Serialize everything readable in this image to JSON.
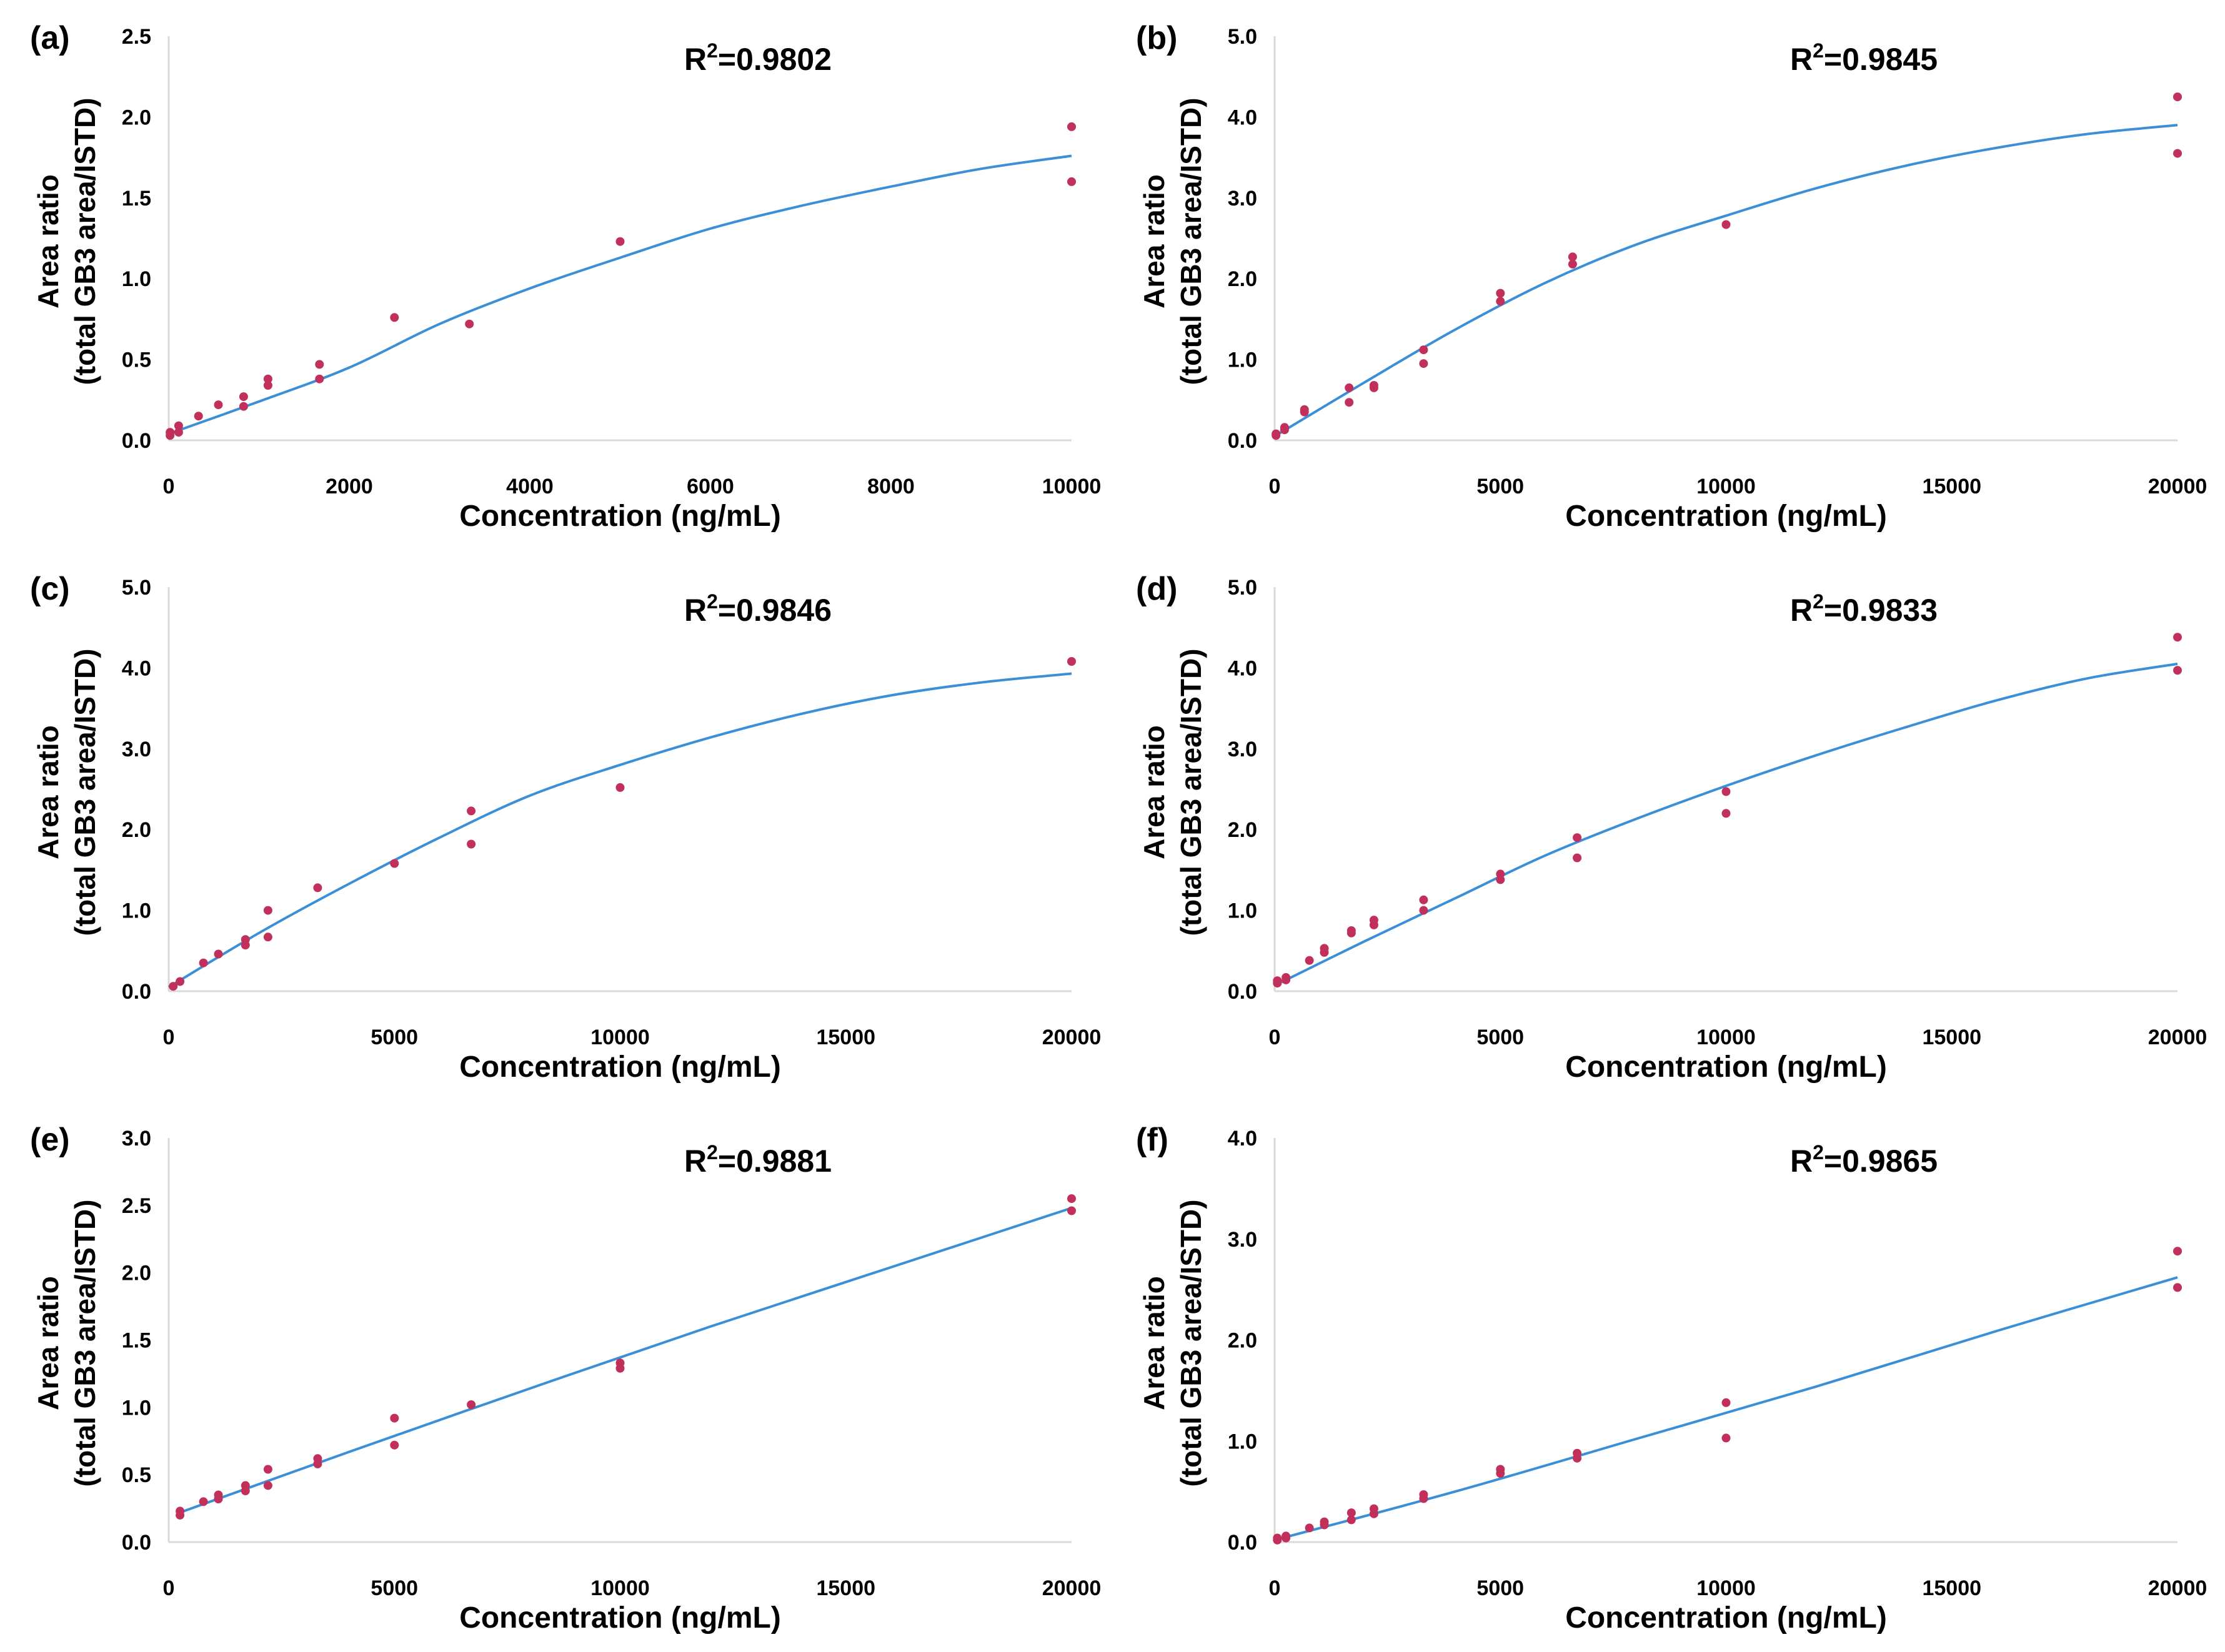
{
  "colors": {
    "fit_line": "#3b8fd6",
    "points": "#c0305a",
    "axis": "#d9d9d9"
  },
  "chart_data": [
    {
      "type": "scatter",
      "panel_label": "(a)",
      "r2_prefix": "R",
      "r2_exp": "2",
      "r2_value": "=0.9802",
      "xlabel": "Concentration (ng/mL)",
      "ylabel_line1": "Area ratio",
      "ylabel_line2": "(total GB3 area/ISTD)",
      "xlim": [
        0,
        10000
      ],
      "ylim": [
        0,
        2.5
      ],
      "xticks": [
        0,
        2000,
        4000,
        6000,
        8000,
        10000
      ],
      "xtick_labels": [
        "0",
        "2000",
        "4000",
        "6000",
        "8000",
        "10000"
      ],
      "yticks": [
        0,
        0.5,
        1.0,
        1.5,
        2.0,
        2.5
      ],
      "ytick_labels": [
        "0.0",
        "0.5",
        "1.0",
        "1.5",
        "2.0",
        "2.5"
      ],
      "points": [
        [
          15,
          0.03
        ],
        [
          15,
          0.05
        ],
        [
          110,
          0.05
        ],
        [
          110,
          0.09
        ],
        [
          330,
          0.15
        ],
        [
          550,
          0.22
        ],
        [
          830,
          0.21
        ],
        [
          830,
          0.27
        ],
        [
          1100,
          0.34
        ],
        [
          1100,
          0.38
        ],
        [
          1670,
          0.38
        ],
        [
          1670,
          0.47
        ],
        [
          2500,
          0.76
        ],
        [
          3330,
          0.72
        ],
        [
          5000,
          1.23
        ],
        [
          10000,
          1.6
        ],
        [
          10000,
          1.94
        ]
      ],
      "fit": [
        [
          0,
          0.04
        ],
        [
          1000,
          0.24
        ],
        [
          2000,
          0.45
        ],
        [
          3000,
          0.72
        ],
        [
          4000,
          0.94
        ],
        [
          5000,
          1.13
        ],
        [
          6000,
          1.31
        ],
        [
          7000,
          1.45
        ],
        [
          8000,
          1.57
        ],
        [
          9000,
          1.68
        ],
        [
          10000,
          1.76
        ]
      ]
    },
    {
      "type": "scatter",
      "panel_label": "(b)",
      "r2_prefix": "R",
      "r2_exp": "2",
      "r2_value": "=0.9845",
      "xlabel": "Concentration (ng/mL)",
      "ylabel_line1": "Area ratio",
      "ylabel_line2": "(total GB3 area/ISTD)",
      "xlim": [
        0,
        20000
      ],
      "ylim": [
        0,
        5.0
      ],
      "xticks": [
        0,
        5000,
        10000,
        15000,
        20000
      ],
      "xtick_labels": [
        "0",
        "5000",
        "10000",
        "15000",
        "20000"
      ],
      "yticks": [
        0,
        1.0,
        2.0,
        3.0,
        4.0,
        5.0
      ],
      "ytick_labels": [
        "0.0",
        "1.0",
        "2.0",
        "3.0",
        "4.0",
        "5.0"
      ],
      "points": [
        [
          30,
          0.06
        ],
        [
          30,
          0.08
        ],
        [
          220,
          0.13
        ],
        [
          220,
          0.16
        ],
        [
          660,
          0.35
        ],
        [
          660,
          0.38
        ],
        [
          1650,
          0.47
        ],
        [
          1650,
          0.65
        ],
        [
          2200,
          0.65
        ],
        [
          2200,
          0.68
        ],
        [
          3300,
          0.95
        ],
        [
          3300,
          1.12
        ],
        [
          5000,
          1.72
        ],
        [
          5000,
          1.82
        ],
        [
          6600,
          2.18
        ],
        [
          6600,
          2.27
        ],
        [
          10000,
          2.67
        ],
        [
          20000,
          3.55
        ],
        [
          20000,
          4.25
        ]
      ],
      "fit": [
        [
          0,
          0.05
        ],
        [
          2000,
          0.72
        ],
        [
          4000,
          1.37
        ],
        [
          6000,
          1.95
        ],
        [
          8000,
          2.42
        ],
        [
          10000,
          2.78
        ],
        [
          12000,
          3.12
        ],
        [
          14000,
          3.4
        ],
        [
          16000,
          3.62
        ],
        [
          18000,
          3.79
        ],
        [
          20000,
          3.9
        ]
      ]
    },
    {
      "type": "scatter",
      "panel_label": "(c)",
      "r2_prefix": "R",
      "r2_exp": "2",
      "r2_value": "=0.9846",
      "xlabel": "Concentration (ng/mL)",
      "ylabel_line1": "Area ratio",
      "ylabel_line2": "(total GB3 area/ISTD)",
      "xlim": [
        0,
        20000
      ],
      "ylim": [
        0,
        5.0
      ],
      "xticks": [
        0,
        5000,
        10000,
        15000,
        20000
      ],
      "xtick_labels": [
        "0",
        "5000",
        "10000",
        "15000",
        "20000"
      ],
      "yticks": [
        0,
        1.0,
        2.0,
        3.0,
        4.0,
        5.0
      ],
      "ytick_labels": [
        "0.0",
        "1.0",
        "2.0",
        "3.0",
        "4.0",
        "5.0"
      ],
      "points": [
        [
          100,
          0.06
        ],
        [
          250,
          0.12
        ],
        [
          770,
          0.35
        ],
        [
          1100,
          0.46
        ],
        [
          1700,
          0.57
        ],
        [
          1700,
          0.64
        ],
        [
          2200,
          0.67
        ],
        [
          2200,
          1.0
        ],
        [
          3300,
          1.28
        ],
        [
          5000,
          1.58
        ],
        [
          6700,
          1.82
        ],
        [
          6700,
          2.23
        ],
        [
          10000,
          2.52
        ],
        [
          20000,
          4.08
        ]
      ],
      "fit": [
        [
          0,
          0.05
        ],
        [
          2000,
          0.72
        ],
        [
          4000,
          1.33
        ],
        [
          6000,
          1.9
        ],
        [
          8000,
          2.42
        ],
        [
          10000,
          2.8
        ],
        [
          12000,
          3.14
        ],
        [
          14000,
          3.43
        ],
        [
          16000,
          3.66
        ],
        [
          18000,
          3.82
        ],
        [
          20000,
          3.93
        ]
      ]
    },
    {
      "type": "scatter",
      "panel_label": "(d)",
      "r2_prefix": "R",
      "r2_exp": "2",
      "r2_value": "=0.9833",
      "xlabel": "Concentration (ng/mL)",
      "ylabel_line1": "Area ratio",
      "ylabel_line2": "(total GB3 area/ISTD)",
      "xlim": [
        0,
        20000
      ],
      "ylim": [
        0,
        5.0
      ],
      "xticks": [
        0,
        5000,
        10000,
        15000,
        20000
      ],
      "xtick_labels": [
        "0",
        "5000",
        "10000",
        "15000",
        "20000"
      ],
      "yticks": [
        0,
        1.0,
        2.0,
        3.0,
        4.0,
        5.0
      ],
      "ytick_labels": [
        "0.0",
        "1.0",
        "2.0",
        "3.0",
        "4.0",
        "5.0"
      ],
      "points": [
        [
          60,
          0.1
        ],
        [
          60,
          0.13
        ],
        [
          250,
          0.14
        ],
        [
          250,
          0.17
        ],
        [
          770,
          0.38
        ],
        [
          1100,
          0.48
        ],
        [
          1100,
          0.53
        ],
        [
          1700,
          0.72
        ],
        [
          1700,
          0.75
        ],
        [
          2200,
          0.82
        ],
        [
          2200,
          0.88
        ],
        [
          3300,
          1.0
        ],
        [
          3300,
          1.13
        ],
        [
          5000,
          1.38
        ],
        [
          5000,
          1.45
        ],
        [
          6700,
          1.65
        ],
        [
          6700,
          1.9
        ],
        [
          10000,
          2.2
        ],
        [
          10000,
          2.47
        ],
        [
          20000,
          3.97
        ],
        [
          20000,
          4.38
        ]
      ],
      "fit": [
        [
          0,
          0.07
        ],
        [
          2000,
          0.62
        ],
        [
          4000,
          1.15
        ],
        [
          6000,
          1.68
        ],
        [
          8000,
          2.13
        ],
        [
          10000,
          2.54
        ],
        [
          12000,
          2.92
        ],
        [
          14000,
          3.27
        ],
        [
          16000,
          3.6
        ],
        [
          18000,
          3.87
        ],
        [
          20000,
          4.05
        ]
      ]
    },
    {
      "type": "scatter",
      "panel_label": "(e)",
      "r2_prefix": "R",
      "r2_exp": "2",
      "r2_value": "=0.9881",
      "xlabel": "Concentration (ng/mL)",
      "ylabel_line1": "Area ratio",
      "ylabel_line2": "(total GB3 area/ISTD)",
      "xlim": [
        0,
        20000
      ],
      "ylim": [
        0,
        3.0
      ],
      "xticks": [
        0,
        5000,
        10000,
        15000,
        20000
      ],
      "xtick_labels": [
        "0",
        "5000",
        "10000",
        "15000",
        "20000"
      ],
      "yticks": [
        0,
        0.5,
        1.0,
        1.5,
        2.0,
        2.5,
        3.0
      ],
      "ytick_labels": [
        "0.0",
        "0.5",
        "1.0",
        "1.5",
        "2.0",
        "2.5",
        "3.0"
      ],
      "points": [
        [
          250,
          0.2
        ],
        [
          250,
          0.23
        ],
        [
          770,
          0.3
        ],
        [
          1100,
          0.32
        ],
        [
          1100,
          0.35
        ],
        [
          1700,
          0.38
        ],
        [
          1700,
          0.42
        ],
        [
          2200,
          0.42
        ],
        [
          2200,
          0.54
        ],
        [
          3300,
          0.58
        ],
        [
          3300,
          0.62
        ],
        [
          5000,
          0.72
        ],
        [
          5000,
          0.92
        ],
        [
          6700,
          1.02
        ],
        [
          10000,
          1.29
        ],
        [
          10000,
          1.33
        ],
        [
          20000,
          2.46
        ],
        [
          20000,
          2.55
        ]
      ],
      "fit": [
        [
          250,
          0.22
        ],
        [
          4000,
          0.67
        ],
        [
          8000,
          1.14
        ],
        [
          12000,
          1.6
        ],
        [
          16000,
          2.04
        ],
        [
          20000,
          2.48
        ]
      ]
    },
    {
      "type": "scatter",
      "panel_label": "(f)",
      "r2_prefix": "R",
      "r2_exp": "2",
      "r2_value": "=0.9865",
      "xlabel": "Concentration (ng/mL)",
      "ylabel_line1": "Area ratio",
      "ylabel_line2": "(total GB3 area/ISTD)",
      "xlim": [
        0,
        20000
      ],
      "ylim": [
        0,
        4.0
      ],
      "xticks": [
        0,
        5000,
        10000,
        15000,
        20000
      ],
      "xtick_labels": [
        "0",
        "5000",
        "10000",
        "15000",
        "20000"
      ],
      "yticks": [
        0,
        1.0,
        2.0,
        3.0,
        4.0
      ],
      "ytick_labels": [
        "0.0",
        "1.0",
        "2.0",
        "3.0",
        "4.0"
      ],
      "points": [
        [
          60,
          0.02
        ],
        [
          60,
          0.04
        ],
        [
          250,
          0.04
        ],
        [
          250,
          0.06
        ],
        [
          770,
          0.14
        ],
        [
          1100,
          0.17
        ],
        [
          1100,
          0.2
        ],
        [
          1700,
          0.22
        ],
        [
          1700,
          0.29
        ],
        [
          2200,
          0.28
        ],
        [
          2200,
          0.33
        ],
        [
          3300,
          0.43
        ],
        [
          3300,
          0.47
        ],
        [
          5000,
          0.68
        ],
        [
          5000,
          0.72
        ],
        [
          6700,
          0.83
        ],
        [
          6700,
          0.88
        ],
        [
          10000,
          1.03
        ],
        [
          10000,
          1.38
        ],
        [
          20000,
          2.52
        ],
        [
          20000,
          2.88
        ]
      ],
      "fit": [
        [
          0,
          0.02
        ],
        [
          4000,
          0.5
        ],
        [
          8000,
          1.02
        ],
        [
          12000,
          1.54
        ],
        [
          16000,
          2.09
        ],
        [
          20000,
          2.62
        ]
      ]
    }
  ]
}
